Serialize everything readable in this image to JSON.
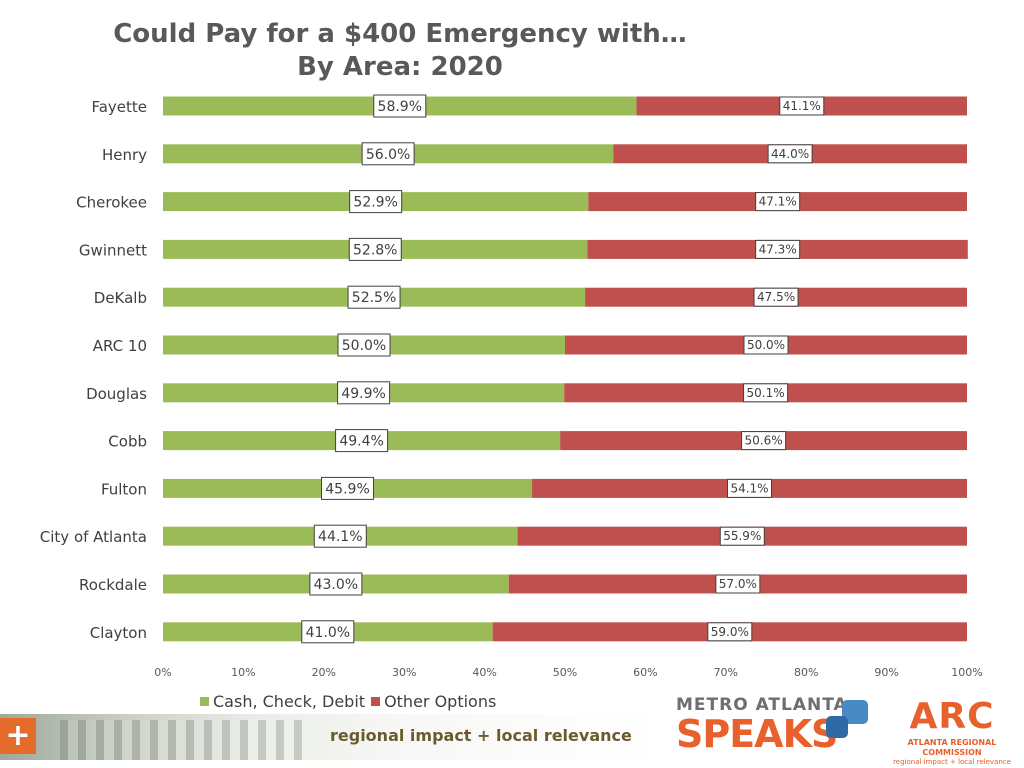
{
  "chart_data": {
    "type": "bar",
    "orientation": "horizontal",
    "stacked": "100%",
    "title": "Could Pay for a $400 Emergency with…",
    "subtitle": "By Area: 2020",
    "categories": [
      "Fayette",
      "Henry",
      "Cherokee",
      "Gwinnett",
      "DeKalb",
      "ARC 10",
      "Douglas",
      "Cobb",
      "Fulton",
      "City of Atlanta",
      "Rockdale",
      "Clayton"
    ],
    "series": [
      {
        "name": "Cash, Check, Debit",
        "color": "#9bbb59",
        "values": [
          58.9,
          56.0,
          52.9,
          52.8,
          52.5,
          50.0,
          49.9,
          49.4,
          45.9,
          44.1,
          43.0,
          41.0
        ]
      },
      {
        "name": "Other Options",
        "color": "#c0504d",
        "values": [
          41.1,
          44.0,
          47.1,
          47.3,
          47.5,
          50.0,
          50.1,
          50.6,
          54.1,
          55.9,
          57.0,
          59.0
        ]
      }
    ],
    "data_labels": {
      "Cash, Check, Debit": [
        "58.9%",
        "56.0%",
        "52.9%",
        "52.8%",
        "52.5%",
        "50.0%",
        "49.9%",
        "49.4%",
        "45.9%",
        "44.1%",
        "43.0%",
        "41.0%"
      ],
      "Other Options": [
        "41.1%",
        "44.0%",
        "47.1%",
        "47.3%",
        "47.5%",
        "50.0%",
        "50.1%",
        "50.6%",
        "54.1%",
        "55.9%",
        "57.0%",
        "59.0%"
      ]
    },
    "xlim": [
      0,
      100
    ],
    "xticks": [
      "0%",
      "10%",
      "20%",
      "30%",
      "40%",
      "50%",
      "60%",
      "70%",
      "80%",
      "90%",
      "100%"
    ],
    "xlabel": "",
    "ylabel": "",
    "grid": false,
    "legend_position": "bottom-left"
  },
  "footer": {
    "plus": "+",
    "tagline": "regional impact + local relevance"
  },
  "logos": {
    "metro_top": "METRO ATLANTA",
    "metro_big": "SPEAKS",
    "arc_logo": "ARC",
    "arc_name": "ATLANTA REGIONAL COMMISSION",
    "arc_sub": "regional impact + local relevance"
  }
}
